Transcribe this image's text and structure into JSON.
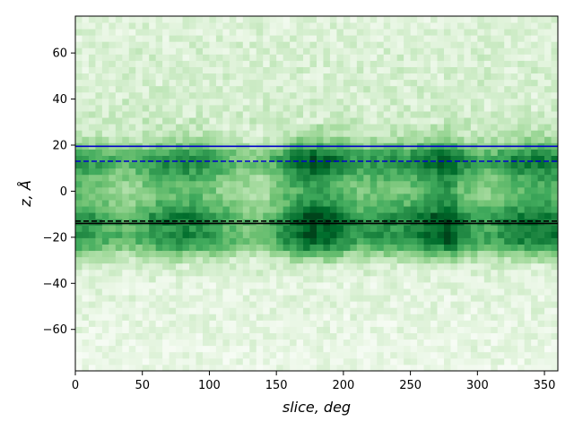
{
  "chart_data": {
    "type": "heatmap",
    "title": "",
    "xlabel": "slice, deg",
    "ylabel": "z, Å",
    "xlim": [
      0,
      360
    ],
    "ylim": [
      -78,
      76
    ],
    "x_ticks": [
      0,
      50,
      100,
      150,
      200,
      250,
      300,
      350
    ],
    "y_ticks": [
      -60,
      -40,
      -20,
      0,
      20,
      40,
      60
    ],
    "colormap": "Greens",
    "grid": false,
    "bin_width_deg": 5,
    "bin_height_A": 2.75,
    "density_profile": {
      "z": [
        -78,
        -60,
        -40,
        -32,
        -28,
        -24,
        -20,
        -16,
        -12,
        -8,
        -4,
        0,
        4,
        8,
        12,
        16,
        20,
        24,
        30,
        40,
        60,
        76
      ],
      "value": [
        0.08,
        0.1,
        0.12,
        0.2,
        0.38,
        0.62,
        0.78,
        0.72,
        0.82,
        0.66,
        0.56,
        0.52,
        0.56,
        0.65,
        0.76,
        0.7,
        0.45,
        0.3,
        0.22,
        0.18,
        0.17,
        0.14
      ]
    },
    "angular_modulation": {
      "slice": [
        0,
        20,
        40,
        60,
        80,
        100,
        120,
        140,
        160,
        175,
        190,
        210,
        230,
        250,
        270,
        280,
        290,
        310,
        330,
        350,
        360
      ],
      "value": [
        0.95,
        0.85,
        0.72,
        0.95,
        1.05,
        0.95,
        0.7,
        0.62,
        1.05,
        1.3,
        1.2,
        0.9,
        0.95,
        1.0,
        1.2,
        1.3,
        0.95,
        0.82,
        1.05,
        1.1,
        1.05
      ]
    },
    "reference_lines": [
      {
        "y": 19.5,
        "color": "#0000cc",
        "style": "solid"
      },
      {
        "y": 13,
        "color": "#0000cc",
        "style": "dashed"
      },
      {
        "y": -13,
        "color": "#000000",
        "style": "dashed"
      },
      {
        "y": -14,
        "color": "#000000",
        "style": "solid"
      }
    ]
  }
}
